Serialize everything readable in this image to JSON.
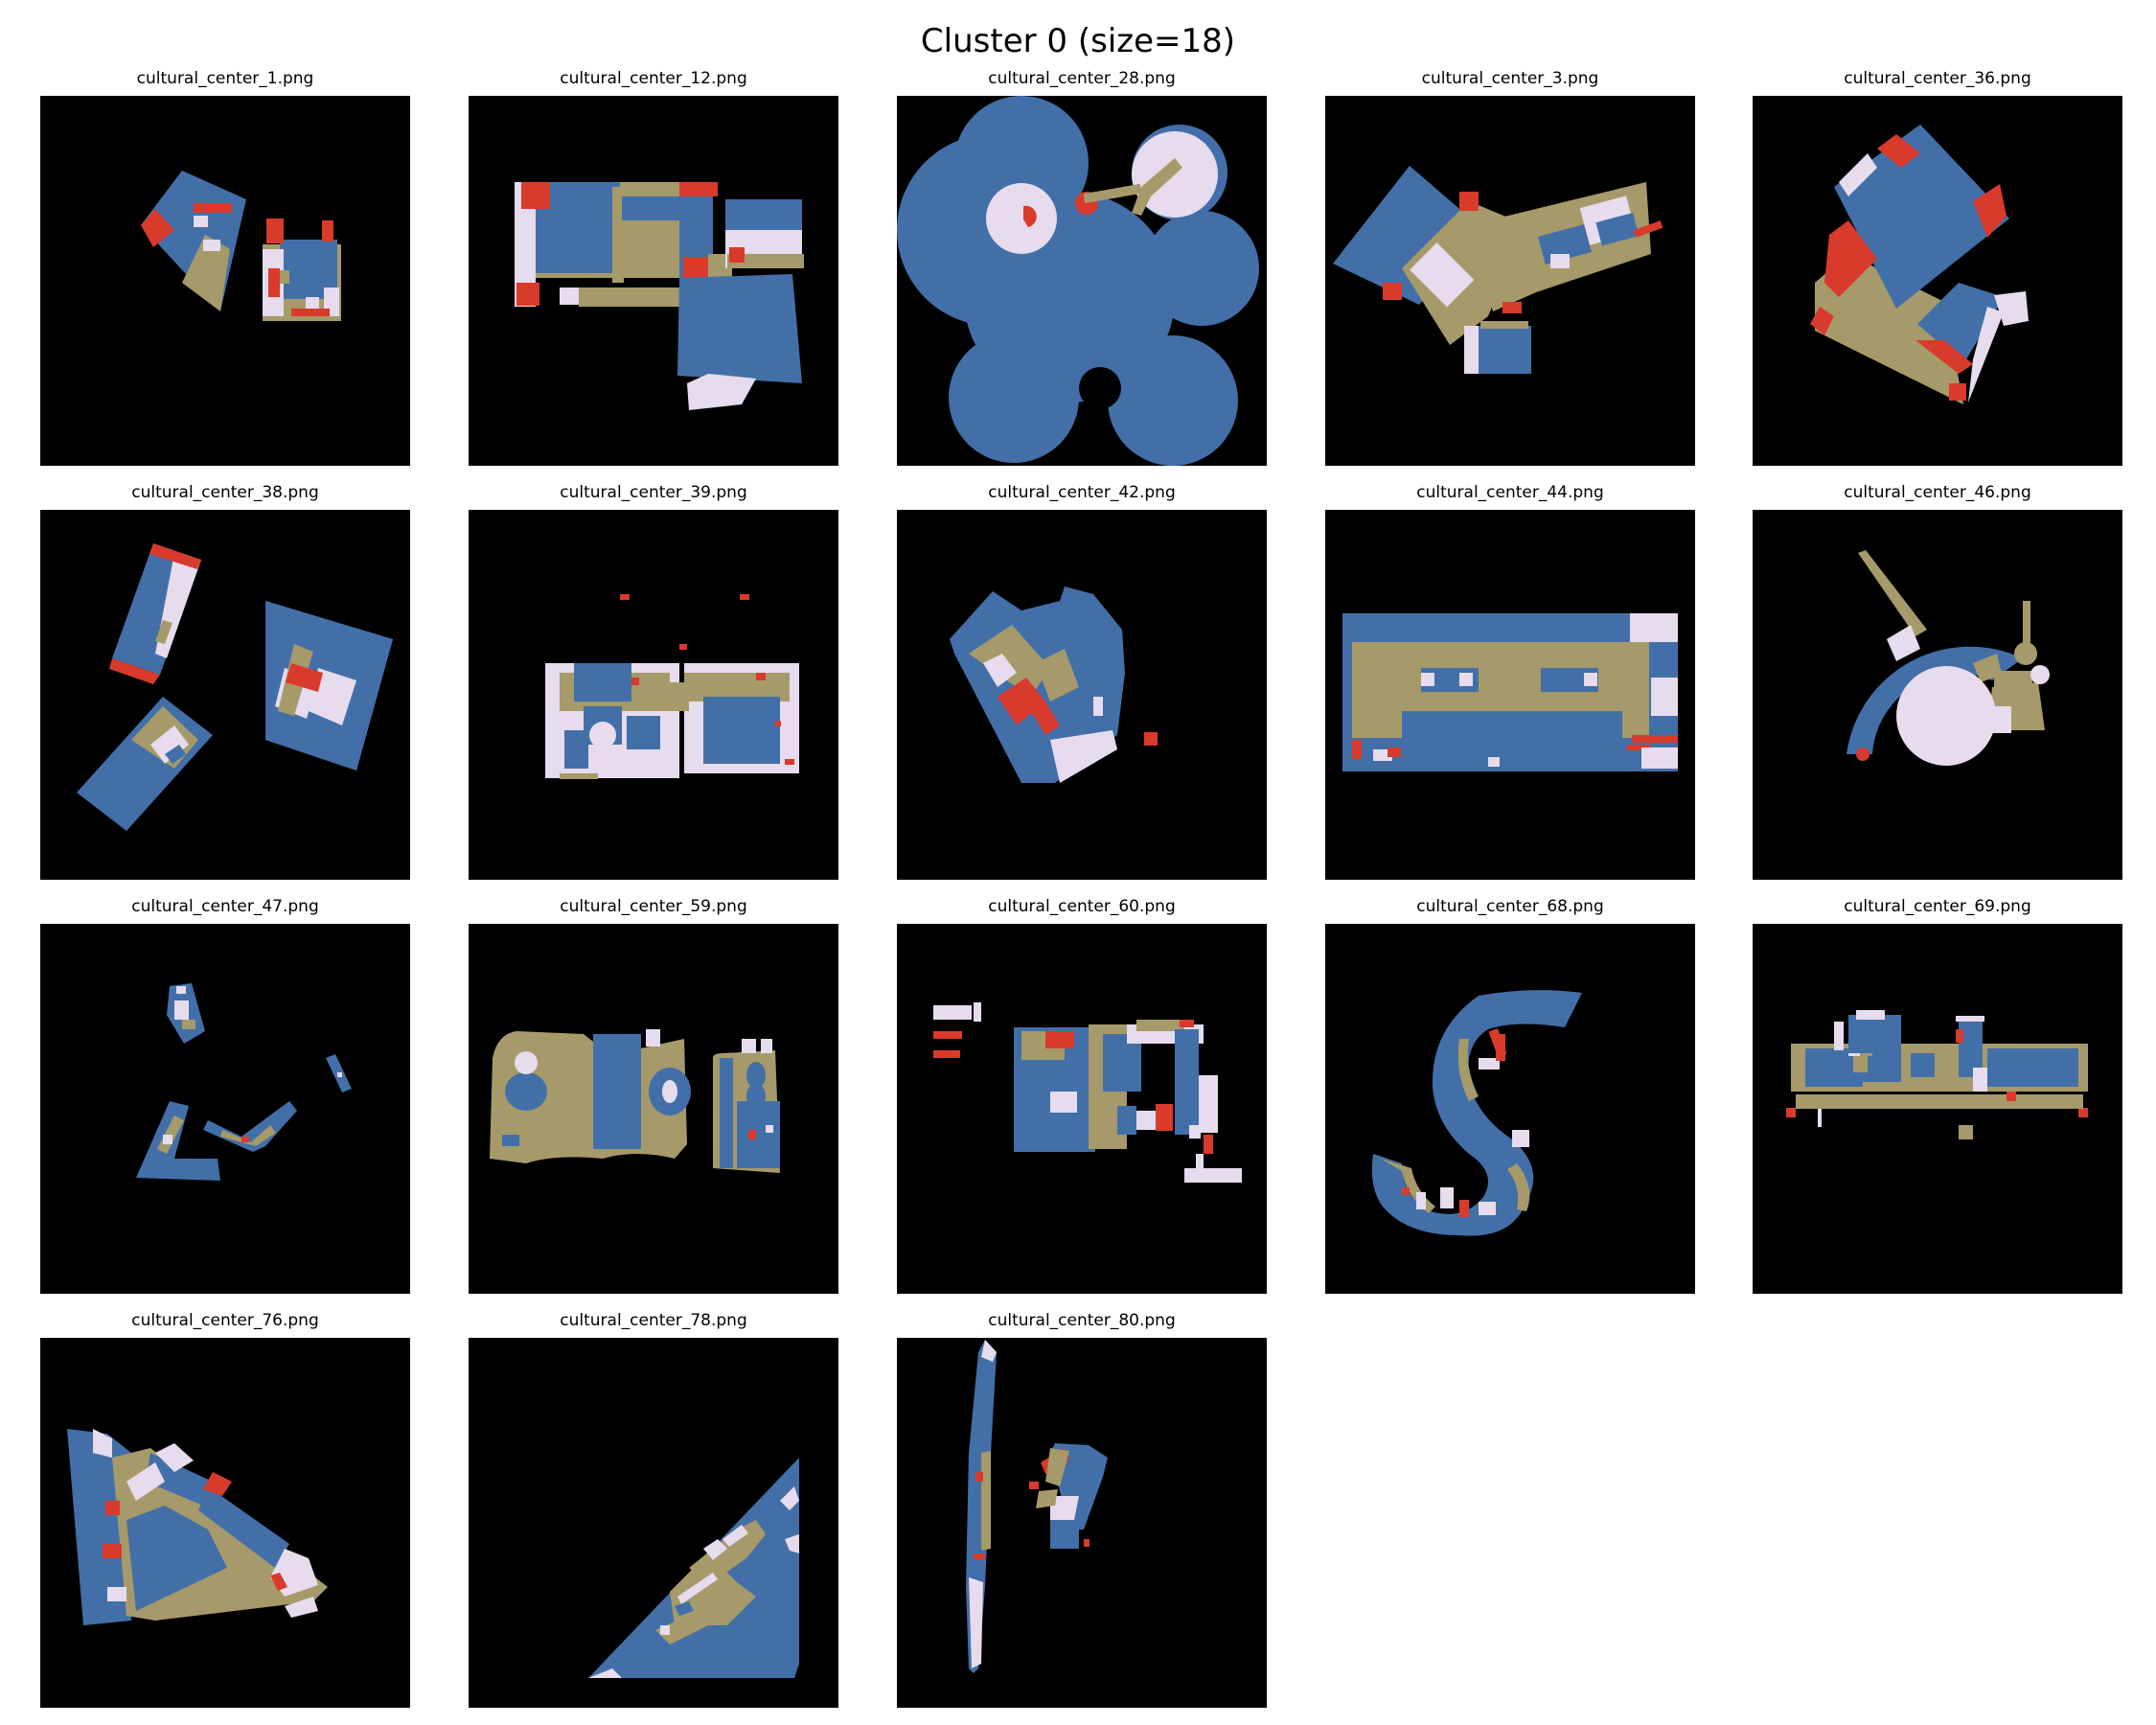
{
  "figure": {
    "title": "Cluster 0 (size=18)"
  },
  "colors": {
    "background": "#000000",
    "room": "#426fa8",
    "corridor": "#a69a6a",
    "open": "#e6dcee",
    "stair": "#d83a2b"
  },
  "thumbnails": [
    {
      "label": "cultural_center_1.png"
    },
    {
      "label": "cultural_center_12.png"
    },
    {
      "label": "cultural_center_28.png"
    },
    {
      "label": "cultural_center_3.png"
    },
    {
      "label": "cultural_center_36.png"
    },
    {
      "label": "cultural_center_38.png"
    },
    {
      "label": "cultural_center_39.png"
    },
    {
      "label": "cultural_center_42.png"
    },
    {
      "label": "cultural_center_44.png"
    },
    {
      "label": "cultural_center_46.png"
    },
    {
      "label": "cultural_center_47.png"
    },
    {
      "label": "cultural_center_59.png"
    },
    {
      "label": "cultural_center_60.png"
    },
    {
      "label": "cultural_center_68.png"
    },
    {
      "label": "cultural_center_69.png"
    },
    {
      "label": "cultural_center_76.png"
    },
    {
      "label": "cultural_center_78.png"
    },
    {
      "label": "cultural_center_80.png"
    }
  ]
}
